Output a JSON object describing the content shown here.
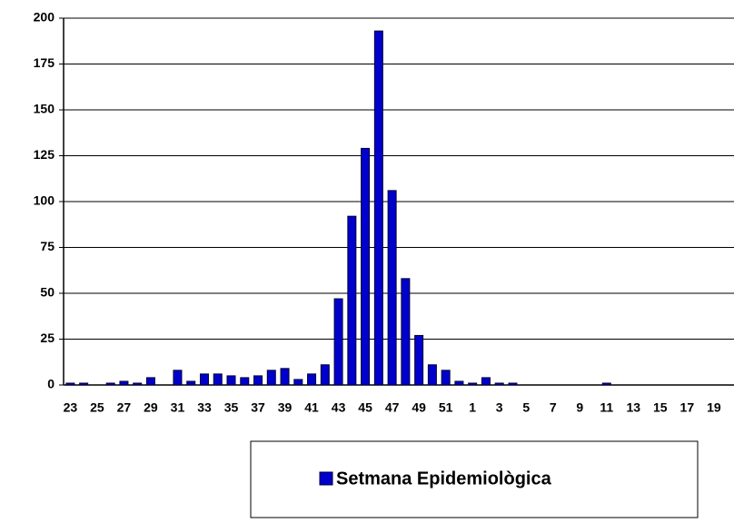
{
  "chart_data": {
    "type": "bar",
    "categories": [
      "23",
      null,
      "25",
      null,
      "27",
      null,
      "29",
      null,
      "31",
      null,
      "33",
      null,
      "35",
      null,
      "37",
      null,
      "39",
      null,
      "41",
      null,
      "43",
      null,
      "45",
      null,
      "47",
      null,
      "49",
      null,
      "51",
      null,
      "1",
      null,
      "3",
      null,
      "5",
      null,
      "7",
      null,
      "9",
      null,
      "11",
      null,
      "13",
      null,
      "15",
      null,
      "17",
      null,
      "19",
      null
    ],
    "series": [
      {
        "name": "Setmana Epidemiològica",
        "color": "#0000cc",
        "values": [
          1,
          1,
          0,
          1,
          2,
          1,
          4,
          0,
          8,
          2,
          6,
          6,
          5,
          4,
          5,
          8,
          9,
          3,
          6,
          11,
          47,
          92,
          129,
          193,
          106,
          58,
          27,
          11,
          8,
          2,
          1,
          4,
          1,
          1,
          0,
          0,
          0,
          0,
          0,
          0,
          1,
          0,
          0,
          0,
          0,
          0,
          0,
          0,
          0,
          0
        ]
      }
    ],
    "ylim": [
      0,
      200
    ],
    "yticks": [
      0,
      25,
      50,
      75,
      100,
      125,
      150,
      175,
      200
    ],
    "grid": true,
    "legend": "bottom"
  }
}
